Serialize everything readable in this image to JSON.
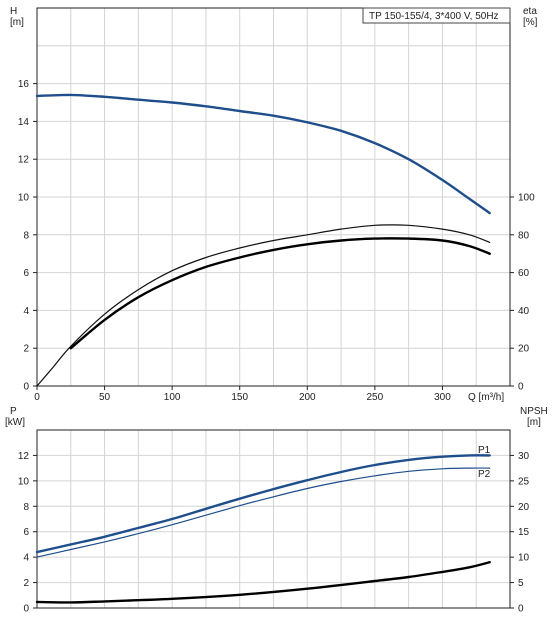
{
  "chart_data": [
    {
      "type": "line",
      "title": "TP 150-155/4, 3*400 V, 50Hz",
      "xlabel": "Q [m³/h]",
      "xlim": [
        0,
        350
      ],
      "x_ticks": [
        0,
        50,
        100,
        150,
        200,
        250,
        300
      ],
      "x_tick_labels": [
        "0",
        "50",
        "100",
        "150",
        "200",
        "250",
        "300"
      ],
      "y_left": {
        "label_line1": "H",
        "label_line2": "[m]",
        "lim": [
          0,
          20
        ],
        "ticks": [
          0,
          2,
          4,
          6,
          8,
          10,
          12,
          14,
          16
        ],
        "tick_labels": [
          "0",
          "2",
          "4",
          "6",
          "8",
          "10",
          "12",
          "14",
          "16"
        ]
      },
      "y_right": {
        "label_line1": "eta",
        "label_line2": "[%]",
        "lim": [
          0,
          200
        ],
        "ticks": [
          0,
          20,
          40,
          60,
          80,
          100
        ],
        "tick_labels": [
          "0",
          "20",
          "40",
          "60",
          "80",
          "100"
        ]
      },
      "grid": true,
      "series": [
        {
          "axis": "left",
          "color": "#1f4e8c",
          "x": [
            0,
            25,
            50,
            75,
            100,
            125,
            150,
            175,
            200,
            225,
            250,
            275,
            300,
            320,
            335
          ],
          "y": [
            15.35,
            15.4,
            15.3,
            15.15,
            15.0,
            14.8,
            14.55,
            14.3,
            13.95,
            13.5,
            12.85,
            12.0,
            10.9,
            9.9,
            9.15
          ]
        },
        {
          "axis": "right",
          "color": "#111111",
          "x": [
            0,
            12,
            25,
            50,
            75,
            100,
            125,
            150,
            175,
            200,
            225,
            250,
            275,
            300,
            320,
            335
          ],
          "y": [
            0,
            10,
            21,
            38,
            51,
            61,
            68,
            73,
            77,
            80,
            83,
            85,
            85,
            83,
            80,
            76
          ]
        },
        {
          "axis": "right",
          "color": "#000000",
          "x": [
            25,
            50,
            75,
            100,
            125,
            150,
            175,
            200,
            225,
            250,
            275,
            300,
            320,
            335
          ],
          "y": [
            20,
            35,
            47,
            56,
            63,
            68,
            72,
            75,
            77,
            78,
            78,
            77,
            74,
            70
          ]
        }
      ]
    },
    {
      "type": "line",
      "y_left": {
        "label_line1": "P",
        "label_line2": "[kW]",
        "lim": [
          0,
          14
        ],
        "ticks": [
          0,
          2,
          4,
          6,
          8,
          10,
          12
        ],
        "tick_labels": [
          "0",
          "2",
          "4",
          "6",
          "8",
          "10",
          "12"
        ]
      },
      "y_right": {
        "label_line1": "NPSH",
        "label_line2": "[m]",
        "lim": [
          0,
          35
        ],
        "ticks": [
          0,
          5,
          10,
          15,
          20,
          25,
          30
        ],
        "tick_labels": [
          "0",
          "5",
          "10",
          "15",
          "20",
          "25",
          "30"
        ]
      },
      "xlim": [
        0,
        350
      ],
      "grid": true,
      "series": [
        {
          "name": "P1",
          "axis": "left",
          "color": "#1f4e8c",
          "x": [
            0,
            25,
            50,
            75,
            100,
            125,
            150,
            175,
            200,
            225,
            250,
            275,
            300,
            320,
            335
          ],
          "y": [
            4.4,
            5.0,
            5.6,
            6.3,
            7.0,
            7.8,
            8.6,
            9.35,
            10.05,
            10.7,
            11.25,
            11.65,
            11.9,
            12.0,
            12.0
          ]
        },
        {
          "name": "P2",
          "axis": "left",
          "color": "#1f4e8c",
          "x": [
            0,
            25,
            50,
            75,
            100,
            125,
            150,
            175,
            200,
            225,
            250,
            275,
            300,
            320,
            335
          ],
          "y": [
            4.0,
            4.6,
            5.2,
            5.85,
            6.55,
            7.3,
            8.05,
            8.75,
            9.4,
            9.95,
            10.4,
            10.75,
            10.95,
            11.0,
            11.0
          ]
        },
        {
          "axis": "right",
          "color": "#000000",
          "x": [
            0,
            25,
            50,
            100,
            150,
            200,
            250,
            275,
            300,
            320,
            335
          ],
          "y": [
            1.2,
            1.1,
            1.3,
            1.8,
            2.6,
            3.8,
            5.3,
            6.1,
            7.1,
            8.0,
            9.0
          ]
        }
      ]
    }
  ]
}
